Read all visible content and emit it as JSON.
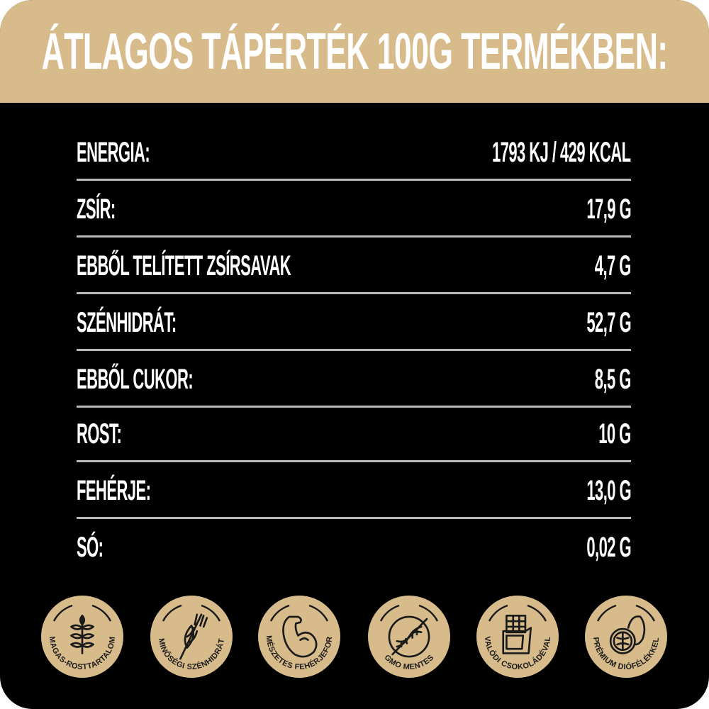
{
  "header": {
    "title": "ÁTLAGOS TÁPÉRTÉK 100G TERMÉKBEN:"
  },
  "nutrition": [
    {
      "label": "ENERGIA:",
      "value": "1793 KJ / 429 KCAL"
    },
    {
      "label": "ZSÍR:",
      "value": "17,9 G"
    },
    {
      "label": "EBBŐL TELÍTETT ZSÍRSAVAK",
      "value": "4,7 G"
    },
    {
      "label": "SZÉNHIDRÁT:",
      "value": "52,7 G"
    },
    {
      "label": "EBBŐL CUKOR:",
      "value": "8,5 G"
    },
    {
      "label": "ROST:",
      "value": "10 G"
    },
    {
      "label": "FEHÉRJE:",
      "value": "13,0 G"
    },
    {
      "label": "SÓ:",
      "value": "0,02 G"
    }
  ],
  "badges": [
    {
      "icon": "wheat-leaf-icon",
      "text": "MAGAS-ROSTTARTALOM"
    },
    {
      "icon": "wheat-ear-icon",
      "text": "MINŐSÉGI SZÉNHIDRÁT"
    },
    {
      "icon": "bicep-icon",
      "text": "TERMÉSZETES FEHÉRJEFORRÁS"
    },
    {
      "icon": "dna-crossed-icon",
      "text": "GMO MENTES"
    },
    {
      "icon": "chocolate-bar-icon",
      "text": "VALÓDI CSOKOLÁDÉVAL"
    },
    {
      "icon": "walnut-icon",
      "text": "PRÉMIUM DIÓFÉLÉKKEL"
    }
  ],
  "colors": {
    "accent": "#d8bb8a",
    "background": "#000000",
    "text": "#ffffff",
    "divider": "#b9b9b9",
    "badge_ink": "#1a1a1a"
  }
}
